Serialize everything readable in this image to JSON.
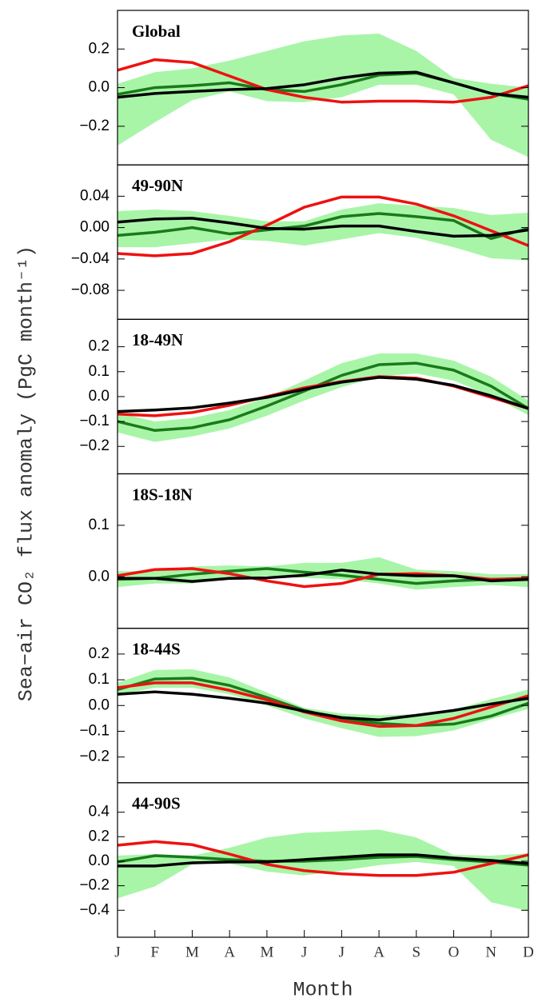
{
  "xlabel": "Month",
  "ylabel": "Sea−air CO₂ flux anomaly  (PgC month⁻¹)",
  "categories": [
    "J",
    "F",
    "M",
    "A",
    "M",
    "J",
    "J",
    "A",
    "S",
    "O",
    "N",
    "D"
  ],
  "chart_data": [
    {
      "type": "line",
      "title": "Global",
      "ylim": [
        -0.4,
        0.4
      ],
      "yticks": [
        0.2,
        {
          "value": 0,
          "label": "0.0"
        },
        {
          "value": -0.2,
          "label": "−0.2"
        }
      ],
      "band": {
        "color": "#a8f5a8",
        "upper": [
          0.02,
          0.08,
          0.1,
          0.14,
          0.19,
          0.24,
          0.27,
          0.28,
          0.19,
          0.05,
          0.02,
          0.0
        ],
        "lower": [
          -0.3,
          -0.18,
          -0.065,
          -0.02,
          -0.07,
          -0.075,
          -0.05,
          0.015,
          0.015,
          -0.035,
          -0.27,
          -0.36
        ]
      },
      "series": [
        {
          "color": "#1a7a1a",
          "values": [
            -0.035,
            0.0,
            0.01,
            0.025,
            -0.01,
            -0.02,
            0.015,
            0.065,
            0.075,
            0.025,
            -0.03,
            -0.06
          ]
        },
        {
          "color": "#ee1111",
          "values": [
            0.09,
            0.145,
            0.13,
            0.06,
            -0.01,
            -0.05,
            -0.075,
            -0.07,
            -0.07,
            -0.075,
            -0.05,
            0.01
          ]
        },
        {
          "color": "#000000",
          "values": [
            -0.05,
            -0.03,
            -0.02,
            -0.01,
            -0.005,
            0.015,
            0.05,
            0.075,
            0.08,
            0.025,
            -0.03,
            -0.05
          ]
        }
      ]
    },
    {
      "type": "line",
      "title": "49-90N",
      "ylim": [
        -0.117,
        0.08
      ],
      "yticks": [
        0.04,
        {
          "value": 0,
          "label": "0.00"
        },
        {
          "value": -0.04,
          "label": "−0.04"
        },
        {
          "value": -0.08,
          "label": "−0.08"
        }
      ],
      "band": {
        "color": "#a8f5a8",
        "upper": [
          0.021,
          0.023,
          0.021,
          0.015,
          0.008,
          0.008,
          0.023,
          0.031,
          0.028,
          0.025,
          0.016,
          0.019
        ],
        "lower": [
          -0.025,
          -0.025,
          -0.02,
          -0.015,
          -0.017,
          -0.023,
          -0.015,
          -0.007,
          -0.013,
          -0.025,
          -0.039,
          -0.042
        ]
      },
      "series": [
        {
          "color": "#1a7a1a",
          "values": [
            -0.01,
            -0.006,
            0.0,
            -0.008,
            -0.003,
            0.002,
            0.014,
            0.018,
            0.014,
            0.009,
            -0.014,
            -0.001
          ]
        },
        {
          "color": "#ee1111",
          "values": [
            -0.033,
            -0.036,
            -0.033,
            -0.018,
            0.003,
            0.026,
            0.039,
            0.039,
            0.03,
            0.015,
            -0.004,
            -0.023
          ]
        },
        {
          "color": "#000000",
          "values": [
            0.007,
            0.011,
            0.012,
            0.006,
            -0.001,
            -0.002,
            0.002,
            0.002,
            -0.005,
            -0.011,
            -0.01,
            -0.003
          ]
        }
      ]
    },
    {
      "type": "line",
      "title": "18-49N",
      "ylim": [
        -0.31,
        0.31
      ],
      "yticks": [
        0.2,
        0.1,
        {
          "value": 0,
          "label": "0.0"
        },
        {
          "value": -0.1,
          "label": "−0.1"
        },
        {
          "value": -0.2,
          "label": "−0.2"
        }
      ],
      "band": {
        "color": "#a8f5a8",
        "upper": [
          -0.064,
          -0.1,
          -0.086,
          -0.054,
          -0.003,
          0.064,
          0.134,
          0.173,
          0.173,
          0.144,
          0.08,
          -0.016
        ],
        "lower": [
          -0.144,
          -0.182,
          -0.16,
          -0.128,
          -0.077,
          -0.016,
          0.038,
          0.08,
          0.093,
          0.064,
          0.003,
          -0.074
        ]
      },
      "series": [
        {
          "color": "#1a7a1a",
          "values": [
            -0.1,
            -0.136,
            -0.125,
            -0.093,
            -0.038,
            0.022,
            0.085,
            0.128,
            0.134,
            0.106,
            0.042,
            -0.048
          ]
        },
        {
          "color": "#ee1111",
          "values": [
            -0.07,
            -0.077,
            -0.064,
            -0.035,
            0.0,
            0.035,
            0.06,
            0.08,
            0.074,
            0.042,
            -0.003,
            -0.048
          ]
        },
        {
          "color": "#000000",
          "values": [
            -0.06,
            -0.054,
            -0.045,
            -0.026,
            -0.003,
            0.029,
            0.058,
            0.077,
            0.07,
            0.045,
            0.003,
            -0.048
          ]
        }
      ]
    },
    {
      "type": "line",
      "title": "18S-18N",
      "ylim": [
        -0.1,
        0.2
      ],
      "yticks": [
        0.1,
        {
          "value": 0,
          "label": "0.0"
        }
      ],
      "band": {
        "color": "#a8f5a8",
        "upper": [
          0.011,
          0.011,
          0.02,
          0.022,
          0.02,
          0.027,
          0.027,
          0.038,
          0.014,
          0.011,
          0.005,
          0.005
        ],
        "lower": [
          -0.02,
          -0.013,
          -0.013,
          -0.005,
          0.002,
          -0.002,
          -0.005,
          -0.013,
          -0.025,
          -0.02,
          -0.016,
          -0.02
        ]
      },
      "series": [
        {
          "color": "#1a7a1a",
          "values": [
            -0.005,
            -0.003,
            0.005,
            0.011,
            0.016,
            0.009,
            0.003,
            -0.005,
            -0.013,
            -0.008,
            -0.005,
            -0.005
          ]
        },
        {
          "color": "#ee1111",
          "values": [
            0.002,
            0.014,
            0.016,
            0.006,
            -0.008,
            -0.019,
            -0.013,
            0.005,
            0.006,
            0.002,
            -0.005,
            -0.003
          ]
        },
        {
          "color": "#000000",
          "values": [
            -0.003,
            -0.003,
            -0.009,
            -0.003,
            -0.002,
            0.003,
            0.013,
            0.005,
            0.002,
            0.002,
            -0.008,
            -0.005
          ]
        }
      ]
    },
    {
      "type": "line",
      "title": "18-44S",
      "ylim": [
        -0.3,
        0.3
      ],
      "yticks": [
        0.2,
        0.1,
        {
          "value": 0,
          "label": "0.0"
        },
        {
          "value": -0.1,
          "label": "−0.1"
        },
        {
          "value": -0.2,
          "label": "−0.2"
        }
      ],
      "band": {
        "color": "#a8f5a8",
        "upper": [
          0.088,
          0.138,
          0.141,
          0.109,
          0.05,
          -0.009,
          -0.031,
          -0.038,
          -0.034,
          -0.016,
          0.025,
          0.062
        ],
        "lower": [
          0.041,
          0.069,
          0.069,
          0.044,
          0.0,
          -0.05,
          -0.088,
          -0.122,
          -0.119,
          -0.097,
          -0.053,
          -0.013
        ]
      },
      "series": [
        {
          "color": "#1a7a1a",
          "values": [
            0.062,
            0.103,
            0.106,
            0.078,
            0.031,
            -0.019,
            -0.053,
            -0.069,
            -0.078,
            -0.072,
            -0.041,
            0.009
          ]
        },
        {
          "color": "#ee1111",
          "values": [
            0.069,
            0.088,
            0.088,
            0.059,
            0.022,
            -0.025,
            -0.06,
            -0.081,
            -0.078,
            -0.05,
            -0.006,
            0.038
          ]
        },
        {
          "color": "#000000",
          "values": [
            0.044,
            0.053,
            0.044,
            0.028,
            0.009,
            -0.022,
            -0.047,
            -0.056,
            -0.038,
            -0.019,
            0.006,
            0.028
          ]
        }
      ]
    },
    {
      "type": "line",
      "title": "44-90S",
      "ylim": [
        -0.62,
        0.64
      ],
      "yticks": [
        0.4,
        0.2,
        {
          "value": 0,
          "label": "0.0"
        },
        {
          "value": -0.2,
          "label": "−0.2"
        },
        {
          "value": -0.4,
          "label": "−0.4"
        }
      ],
      "band": {
        "color": "#a8f5a8",
        "upper": [
          0.045,
          0.058,
          0.045,
          0.11,
          0.194,
          0.232,
          0.245,
          0.258,
          0.194,
          0.052,
          0.045,
          0.065
        ],
        "lower": [
          -0.303,
          -0.206,
          -0.026,
          -0.019,
          -0.084,
          -0.116,
          -0.077,
          -0.032,
          -0.006,
          -0.039,
          -0.335,
          -0.406
        ]
      },
      "series": [
        {
          "color": "#1a7a1a",
          "values": [
            -0.006,
            0.045,
            0.032,
            0.013,
            0.0,
            0.0,
            0.013,
            0.032,
            0.039,
            0.013,
            -0.006,
            -0.032
          ]
        },
        {
          "color": "#ee1111",
          "values": [
            0.13,
            0.16,
            0.135,
            0.058,
            -0.026,
            -0.077,
            -0.103,
            -0.116,
            -0.116,
            -0.09,
            -0.019,
            0.052
          ]
        },
        {
          "color": "#000000",
          "values": [
            -0.039,
            -0.039,
            -0.013,
            -0.006,
            -0.006,
            0.013,
            0.032,
            0.052,
            0.052,
            0.026,
            0.006,
            -0.019
          ]
        }
      ]
    }
  ]
}
